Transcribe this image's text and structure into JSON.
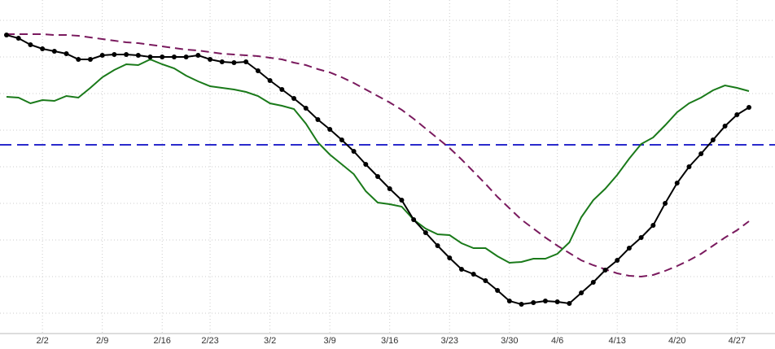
{
  "chart_data": {
    "type": "line",
    "categories": [
      null,
      null,
      null,
      "2/2",
      null,
      null,
      null,
      null,
      "2/9",
      null,
      null,
      null,
      null,
      "2/16",
      null,
      null,
      null,
      "2/23",
      null,
      null,
      null,
      null,
      "3/2",
      null,
      null,
      null,
      null,
      "3/9",
      null,
      null,
      null,
      null,
      "3/16",
      null,
      null,
      null,
      null,
      "3/23",
      null,
      null,
      null,
      null,
      "3/30",
      null,
      null,
      null,
      "4/6",
      null,
      null,
      null,
      null,
      "4/13",
      null,
      null,
      null,
      null,
      "4/20",
      null,
      null,
      null,
      null,
      "4/27",
      null
    ],
    "series": [
      {
        "color": "#7a1a5e",
        "dashed": true,
        "markers": false,
        "values": [
          368,
          368,
          368,
          368,
          367,
          367,
          366,
          364,
          362,
          360,
          358,
          357,
          355,
          353,
          351,
          349,
          348,
          346,
          344,
          343,
          342,
          341,
          339,
          337,
          333,
          330,
          325,
          321,
          315,
          308,
          300,
          292,
          284,
          275,
          264,
          252,
          240,
          228,
          214,
          199,
          184,
          168,
          154,
          140,
          129,
          118,
          108,
          99,
          90,
          84,
          79,
          74,
          71,
          70,
          72,
          77,
          83,
          90,
          98,
          108,
          118,
          127,
          138
        ]
      },
      {
        "color": "#1a7a1a",
        "dashed": false,
        "markers": false,
        "values": [
          291,
          290,
          283,
          287,
          286,
          292,
          290,
          302,
          315,
          324,
          331,
          330,
          337,
          331,
          326,
          317,
          310,
          304,
          302,
          300,
          297,
          292,
          283,
          280,
          276,
          258,
          235,
          220,
          208,
          196,
          175,
          161,
          159,
          156,
          140,
          129,
          122,
          121,
          111,
          105,
          105,
          95,
          87,
          88,
          92,
          92,
          98,
          112,
          143,
          164,
          178,
          195,
          215,
          233,
          241,
          256,
          272,
          283,
          290,
          299,
          305,
          302,
          298
        ]
      },
      {
        "color": "#000000",
        "dashed": false,
        "markers": true,
        "values": [
          367,
          363,
          355,
          350,
          347,
          344,
          337,
          337,
          342,
          343,
          343,
          342,
          340,
          340,
          340,
          340,
          342,
          337,
          334,
          333,
          334,
          323,
          311,
          300,
          289,
          277,
          263,
          251,
          238,
          224,
          208,
          193,
          178,
          164,
          140,
          124,
          108,
          93,
          79,
          73,
          65,
          53,
          40,
          36,
          38,
          40,
          39,
          37,
          50,
          63,
          78,
          90,
          105,
          118,
          133,
          160,
          185,
          205,
          221,
          238,
          255,
          269,
          278
        ]
      }
    ],
    "hline": {
      "value": 232,
      "color": "#2a2acc"
    },
    "ylim": [
      0,
      410
    ],
    "yticks": [
      25,
      70,
      115,
      160,
      205,
      250,
      295,
      340,
      385
    ],
    "grid": true
  }
}
